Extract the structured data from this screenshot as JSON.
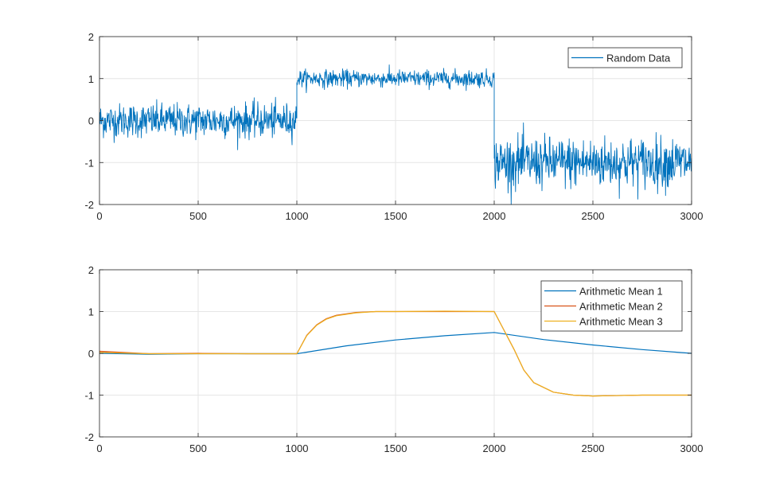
{
  "chart_data": [
    {
      "type": "line",
      "title": "",
      "xlabel": "",
      "ylabel": "",
      "xlim": [
        0,
        3000
      ],
      "ylim": [
        -2,
        2
      ],
      "xticks": [
        "0",
        "500",
        "1000",
        "1500",
        "2000",
        "2500",
        "3000"
      ],
      "yticks": [
        "-2",
        "-1",
        "0",
        "1",
        "2"
      ],
      "grid": true,
      "legend_position": "top-right",
      "series": [
        {
          "name": "Random Data",
          "color": "#0072BD",
          "description": "noisy step signal",
          "segments": [
            {
              "x_start": 0,
              "x_end": 1000,
              "mean": 0,
              "noise_std": 0.2
            },
            {
              "x_start": 1000,
              "x_end": 2000,
              "mean": 1,
              "noise_std": 0.1
            },
            {
              "x_start": 2000,
              "x_end": 3000,
              "mean": -1,
              "noise_std": 0.3
            }
          ]
        }
      ]
    },
    {
      "type": "line",
      "title": "",
      "xlabel": "",
      "ylabel": "",
      "xlim": [
        0,
        3000
      ],
      "ylim": [
        -2,
        2
      ],
      "xticks": [
        "0",
        "500",
        "1000",
        "1500",
        "2000",
        "2500",
        "3000"
      ],
      "yticks": [
        "-2",
        "-1",
        "0",
        "1",
        "2"
      ],
      "grid": true,
      "legend_position": "top-right",
      "series": [
        {
          "name": "Arithmetic Mean 1",
          "color": "#0072BD",
          "x": [
            0,
            250,
            500,
            750,
            1000,
            1250,
            1500,
            1750,
            2000,
            2250,
            2500,
            2750,
            3000
          ],
          "y": [
            0,
            -0.02,
            -0.01,
            -0.01,
            -0.01,
            0.18,
            0.32,
            0.42,
            0.5,
            0.33,
            0.2,
            0.09,
            0.0
          ]
        },
        {
          "name": "Arithmetic Mean 2",
          "color": "#D95319",
          "x": [
            0,
            250,
            500,
            750,
            1000,
            1050,
            1100,
            1150,
            1200,
            1300,
            1400,
            1500,
            1750,
            2000,
            2050,
            2100,
            2150,
            2200,
            2300,
            2400,
            2500,
            2750,
            3000
          ],
          "y": [
            0.05,
            -0.01,
            0.0,
            -0.01,
            -0.01,
            0.43,
            0.68,
            0.83,
            0.91,
            0.98,
            1.0,
            1.0,
            1.0,
            1.0,
            0.55,
            0.1,
            -0.4,
            -0.7,
            -0.93,
            -1.0,
            -1.02,
            -1.0,
            -1.0
          ]
        },
        {
          "name": "Arithmetic Mean 3",
          "color": "#EDB120",
          "x": [
            0,
            250,
            500,
            750,
            1000,
            1050,
            1100,
            1150,
            1200,
            1300,
            1400,
            1500,
            1750,
            2000,
            2050,
            2100,
            2150,
            2200,
            2300,
            2400,
            2500,
            2750,
            3000
          ],
          "y": [
            0.02,
            -0.01,
            -0.01,
            -0.01,
            -0.01,
            0.42,
            0.67,
            0.82,
            0.9,
            0.97,
            1.0,
            1.0,
            1.01,
            1.0,
            0.55,
            0.1,
            -0.4,
            -0.7,
            -0.93,
            -1.0,
            -1.02,
            -1.0,
            -1.0
          ]
        }
      ]
    }
  ]
}
